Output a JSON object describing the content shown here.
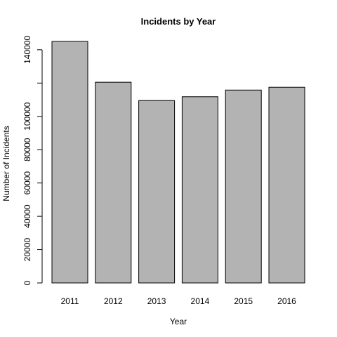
{
  "chart_data": {
    "type": "bar",
    "title": "Incidents by Year",
    "xlabel": "Year",
    "ylabel": "Number of Incidents",
    "categories": [
      "2011",
      "2012",
      "2013",
      "2014",
      "2015",
      "2016"
    ],
    "values": [
      145000,
      120500,
      109500,
      111800,
      115800,
      117500
    ],
    "ylim": [
      0,
      145000
    ],
    "y_ticks": [
      0,
      20000,
      40000,
      60000,
      80000,
      100000,
      140000
    ],
    "y_tick_labels": [
      "0",
      "20000",
      "40000",
      "60000",
      "80000",
      "100000",
      "140000"
    ],
    "grid": false,
    "bar_color": "#b3b3b3",
    "bar_edge_color": "#000000"
  }
}
